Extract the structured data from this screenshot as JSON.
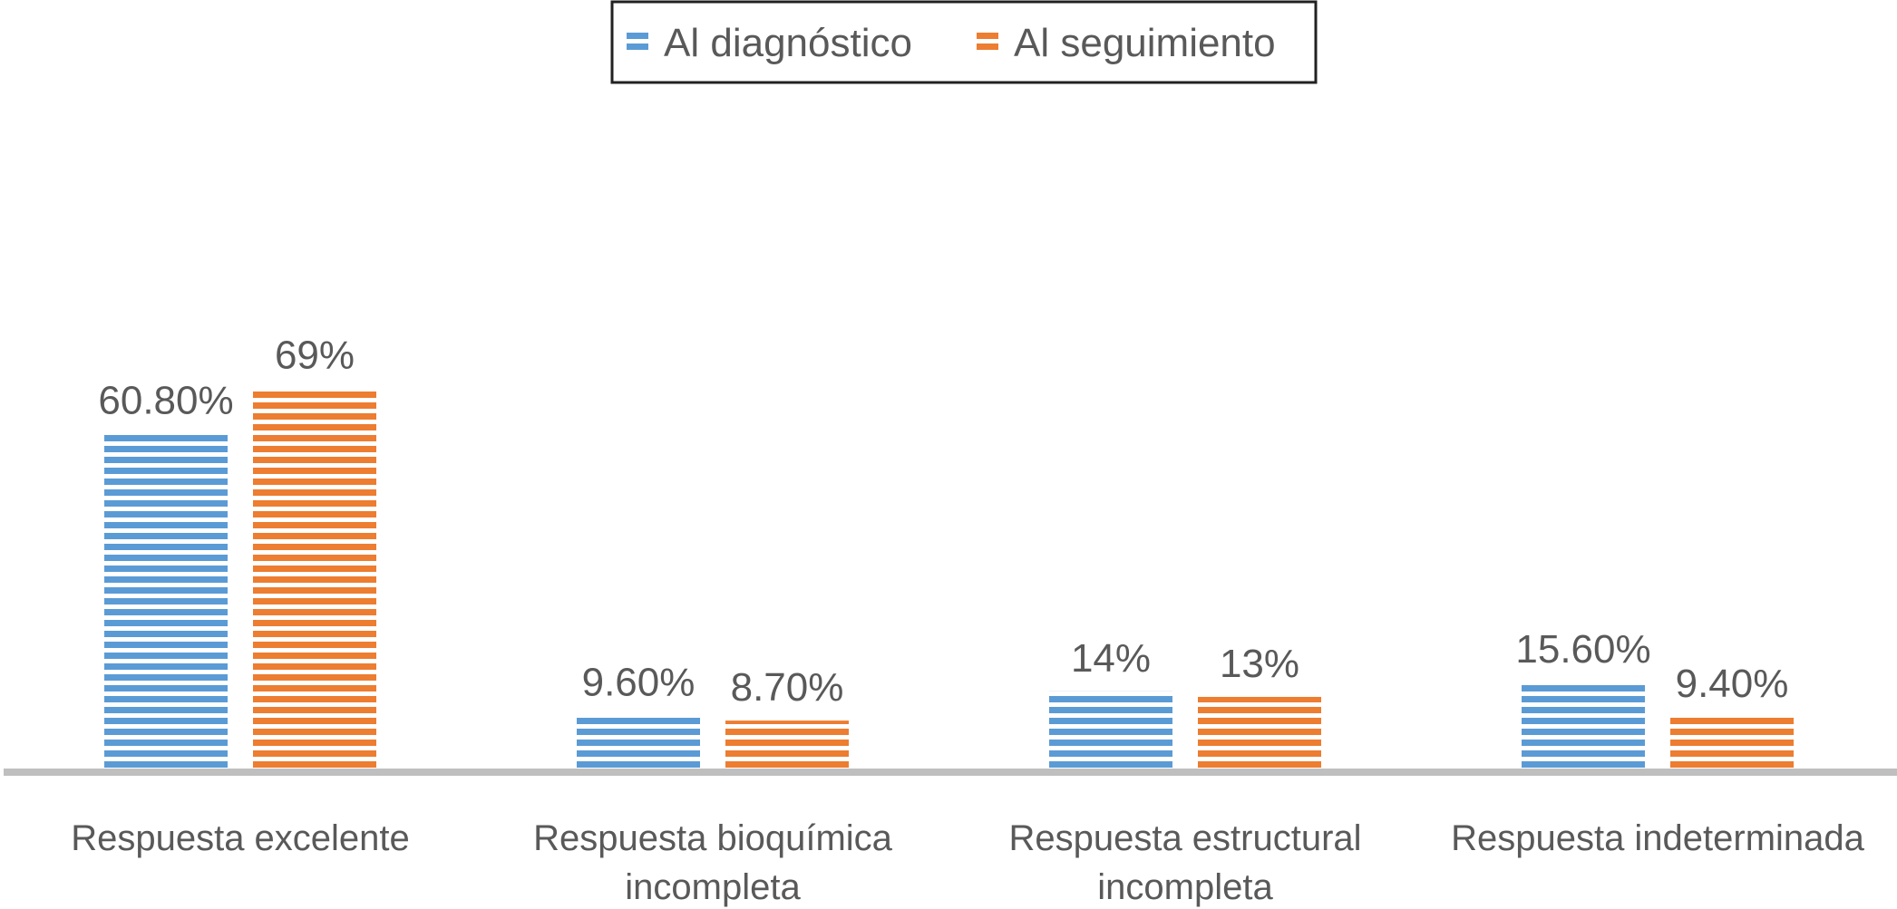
{
  "chart_data": {
    "type": "bar",
    "title": "",
    "xlabel": "",
    "ylabel": "",
    "ylim": [
      0,
      72
    ],
    "grid": false,
    "legend_position": "top-center",
    "categories": [
      [
        "Respuesta excelente"
      ],
      [
        "Respuesta bioquímica",
        "incompleta"
      ],
      [
        "Respuesta estructural",
        "incompleta"
      ],
      [
        "Respuesta indeterminada"
      ]
    ],
    "series": [
      {
        "name": "Al diagnóstico",
        "color": "#5B9BD5",
        "values": [
          60.8,
          9.6,
          14,
          15.6
        ],
        "labels": [
          "60.80%",
          "9.60%",
          "14%",
          "15.60%"
        ]
      },
      {
        "name": "Al seguimiento",
        "color": "#ED7D31",
        "values": [
          69,
          8.7,
          13,
          9.4
        ],
        "labels": [
          "69%",
          "8.70%",
          "13%",
          "9.40%"
        ]
      }
    ]
  }
}
